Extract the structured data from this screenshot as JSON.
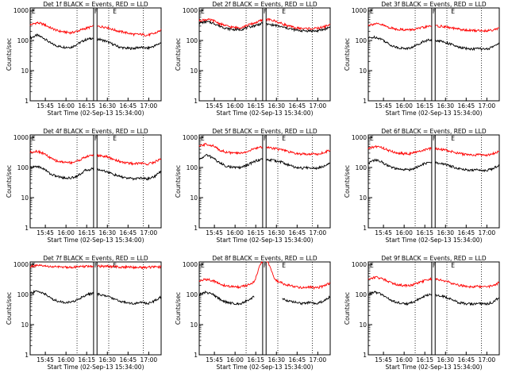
{
  "figure": {
    "xlabel": "Start Time (02-Sep-13 15:34:00)",
    "ylabel": "Counts/sec",
    "xticks": [
      "15:45",
      "16:00",
      "16:15",
      "16:30",
      "16:45",
      "17:00"
    ],
    "yticks": [
      "1",
      "10",
      "100",
      "1000"
    ],
    "markers": [
      "F",
      "E"
    ]
  },
  "colors": {
    "events": "#000000",
    "lld": "#ff0000"
  },
  "chart_data": [
    {
      "type": "line",
      "title": "Det 1f BLACK = Events, RED = LLD",
      "x_unit": "minutes after 15:34",
      "xlim": [
        0,
        95
      ],
      "ylim": [
        1,
        1200
      ],
      "yscale": "log",
      "x": [
        0,
        5,
        10,
        15,
        20,
        25,
        30,
        35,
        40,
        45,
        50,
        55,
        60,
        65,
        70,
        75,
        80,
        85,
        90,
        95
      ],
      "series": [
        {
          "name": "Events",
          "color": "#000000",
          "values": [
            120,
            150,
            120,
            80,
            65,
            60,
            60,
            80,
            105,
            120,
            110,
            95,
            75,
            60,
            55,
            55,
            60,
            55,
            65,
            85
          ]
        },
        {
          "name": "LLD",
          "color": "#ff0000",
          "values": [
            330,
            390,
            340,
            260,
            210,
            190,
            180,
            210,
            250,
            290,
            290,
            280,
            230,
            200,
            180,
            160,
            160,
            150,
            170,
            220
          ]
        }
      ],
      "gaps": [
        [
          46,
          48.5
        ]
      ]
    },
    {
      "type": "line",
      "title": "Det 2f BLACK = Events, RED = LLD",
      "x_unit": "minutes after 15:34",
      "xlim": [
        0,
        95
      ],
      "ylim": [
        1,
        1200
      ],
      "yscale": "log",
      "x": [
        0,
        5,
        10,
        15,
        20,
        25,
        30,
        35,
        40,
        45,
        50,
        55,
        60,
        65,
        70,
        75,
        80,
        85,
        90,
        95
      ],
      "series": [
        {
          "name": "Events",
          "color": "#000000",
          "values": [
            380,
            420,
            380,
            300,
            250,
            230,
            230,
            270,
            310,
            360,
            340,
            320,
            280,
            250,
            220,
            210,
            210,
            205,
            230,
            280
          ]
        },
        {
          "name": "LLD",
          "color": "#ff0000",
          "values": [
            450,
            500,
            460,
            360,
            300,
            270,
            270,
            320,
            380,
            460,
            500,
            440,
            360,
            300,
            260,
            250,
            250,
            250,
            280,
            340
          ]
        }
      ],
      "gaps": [
        [
          46,
          48.5
        ]
      ]
    },
    {
      "type": "line",
      "title": "Det 3f BLACK = Events, RED = LLD",
      "x_unit": "minutes after 15:34",
      "xlim": [
        0,
        95
      ],
      "ylim": [
        1,
        1200
      ],
      "yscale": "log",
      "x": [
        0,
        5,
        10,
        15,
        20,
        25,
        30,
        35,
        40,
        45,
        50,
        55,
        60,
        65,
        70,
        75,
        80,
        85,
        90,
        95
      ],
      "series": [
        {
          "name": "Events",
          "color": "#000000",
          "values": [
            120,
            130,
            110,
            75,
            60,
            55,
            55,
            70,
            95,
            105,
            100,
            90,
            75,
            60,
            55,
            52,
            55,
            50,
            60,
            85
          ]
        },
        {
          "name": "LLD",
          "color": "#ff0000",
          "values": [
            330,
            360,
            330,
            270,
            240,
            230,
            225,
            240,
            270,
            300,
            300,
            290,
            260,
            240,
            220,
            215,
            215,
            210,
            225,
            260
          ]
        }
      ],
      "gaps": [
        [
          46,
          48.5
        ]
      ]
    },
    {
      "type": "line",
      "title": "Det 4f BLACK = Events, RED = LLD",
      "x_unit": "minutes after 15:34",
      "xlim": [
        0,
        95
      ],
      "ylim": [
        1,
        1200
      ],
      "yscale": "log",
      "x": [
        0,
        5,
        10,
        15,
        20,
        25,
        30,
        35,
        40,
        45,
        50,
        55,
        60,
        65,
        70,
        75,
        80,
        85,
        90,
        95
      ],
      "series": [
        {
          "name": "Events",
          "color": "#000000",
          "values": [
            100,
            110,
            90,
            60,
            50,
            45,
            45,
            55,
            80,
            90,
            85,
            75,
            60,
            50,
            45,
            42,
            45,
            42,
            50,
            75
          ]
        },
        {
          "name": "LLD",
          "color": "#ff0000",
          "values": [
            320,
            350,
            290,
            200,
            160,
            150,
            145,
            170,
            220,
            260,
            250,
            230,
            190,
            160,
            140,
            135,
            140,
            130,
            150,
            200
          ]
        }
      ],
      "gaps": [
        [
          46,
          48.5
        ]
      ]
    },
    {
      "type": "line",
      "title": "Det 5f BLACK = Events, RED = LLD",
      "x_unit": "minutes after 15:34",
      "xlim": [
        0,
        95
      ],
      "ylim": [
        1,
        1200
      ],
      "yscale": "log",
      "x": [
        0,
        5,
        10,
        15,
        20,
        25,
        30,
        35,
        40,
        45,
        50,
        55,
        60,
        65,
        70,
        75,
        80,
        85,
        90,
        95
      ],
      "series": [
        {
          "name": "Events",
          "color": "#000000",
          "values": [
            180,
            260,
            210,
            140,
            110,
            100,
            100,
            120,
            160,
            190,
            180,
            170,
            150,
            120,
            100,
            95,
            100,
            95,
            110,
            150
          ]
        },
        {
          "name": "LLD",
          "color": "#ff0000",
          "values": [
            500,
            600,
            520,
            380,
            320,
            300,
            300,
            340,
            420,
            480,
            460,
            430,
            380,
            330,
            290,
            280,
            285,
            275,
            310,
            380
          ]
        }
      ],
      "gaps": [
        [
          46,
          48.5
        ]
      ]
    },
    {
      "type": "line",
      "title": "Det 6f BLACK = Events, RED = LLD",
      "x_unit": "minutes after 15:34",
      "xlim": [
        0,
        95
      ],
      "ylim": [
        1,
        1200
      ],
      "yscale": "log",
      "x": [
        0,
        5,
        10,
        15,
        20,
        25,
        30,
        35,
        40,
        45,
        50,
        55,
        60,
        65,
        70,
        75,
        80,
        85,
        90,
        95
      ],
      "series": [
        {
          "name": "Events",
          "color": "#000000",
          "values": [
            140,
            180,
            150,
            110,
            90,
            85,
            85,
            100,
            130,
            150,
            140,
            130,
            110,
            95,
            85,
            80,
            85,
            80,
            90,
            120
          ]
        },
        {
          "name": "LLD",
          "color": "#ff0000",
          "values": [
            420,
            500,
            460,
            360,
            310,
            290,
            290,
            320,
            380,
            420,
            410,
            390,
            340,
            300,
            270,
            260,
            265,
            255,
            280,
            340
          ]
        }
      ],
      "gaps": [
        [
          46,
          48.5
        ]
      ]
    },
    {
      "type": "line",
      "title": "Det 7f BLACK = Events, RED = LLD",
      "x_unit": "minutes after 15:34",
      "xlim": [
        0,
        95
      ],
      "ylim": [
        1,
        1200
      ],
      "yscale": "log",
      "x": [
        0,
        5,
        10,
        15,
        20,
        25,
        30,
        35,
        40,
        45,
        50,
        55,
        60,
        65,
        70,
        75,
        80,
        85,
        90,
        95
      ],
      "series": [
        {
          "name": "Events",
          "color": "#000000",
          "values": [
            110,
            130,
            110,
            75,
            60,
            55,
            55,
            70,
            95,
            110,
            100,
            90,
            75,
            60,
            55,
            50,
            55,
            50,
            60,
            85
          ]
        },
        {
          "name": "LLD",
          "color": "#ff0000",
          "values": [
            850,
            900,
            880,
            840,
            820,
            810,
            810,
            820,
            850,
            870,
            870,
            860,
            840,
            820,
            810,
            800,
            800,
            800,
            810,
            830
          ]
        }
      ],
      "gaps": [
        [
          46,
          48.5
        ]
      ]
    },
    {
      "type": "line",
      "title": "Det 8f BLACK = Events, RED = LLD",
      "x_unit": "minutes after 15:34",
      "xlim": [
        0,
        95
      ],
      "ylim": [
        1,
        1200
      ],
      "yscale": "log",
      "x": [
        0,
        5,
        10,
        15,
        20,
        25,
        30,
        35,
        40,
        45,
        50,
        55,
        60,
        65,
        70,
        75,
        80,
        85,
        90,
        95
      ],
      "series": [
        {
          "name": "Events",
          "color": "#000000",
          "values": [
            100,
            120,
            100,
            70,
            55,
            50,
            50,
            65,
            85,
            null,
            null,
            null,
            75,
            60,
            55,
            50,
            55,
            50,
            60,
            85
          ]
        },
        {
          "name": "LLD",
          "color": "#ff0000",
          "values": [
            280,
            320,
            290,
            220,
            190,
            180,
            180,
            200,
            260,
            1200,
            1200,
            300,
            240,
            200,
            180,
            170,
            175,
            165,
            190,
            240
          ]
        }
      ],
      "gaps": [
        [
          46,
          48.5
        ]
      ]
    },
    {
      "type": "line",
      "title": "Det 9f BLACK = Events, RED = LLD",
      "x_unit": "minutes after 15:34",
      "xlim": [
        0,
        95
      ],
      "ylim": [
        1,
        1200
      ],
      "yscale": "log",
      "x": [
        0,
        5,
        10,
        15,
        20,
        25,
        30,
        35,
        40,
        45,
        50,
        55,
        60,
        65,
        70,
        75,
        80,
        85,
        90,
        95
      ],
      "series": [
        {
          "name": "Events",
          "color": "#000000",
          "values": [
            105,
            120,
            100,
            70,
            55,
            50,
            50,
            65,
            85,
            100,
            95,
            85,
            70,
            55,
            50,
            48,
            50,
            48,
            55,
            80
          ]
        },
        {
          "name": "LLD",
          "color": "#ff0000",
          "values": [
            320,
            380,
            340,
            270,
            220,
            200,
            200,
            230,
            280,
            320,
            310,
            290,
            240,
            210,
            190,
            180,
            185,
            175,
            195,
            250
          ]
        }
      ],
      "gaps": [
        [
          46,
          48.5
        ]
      ]
    }
  ]
}
